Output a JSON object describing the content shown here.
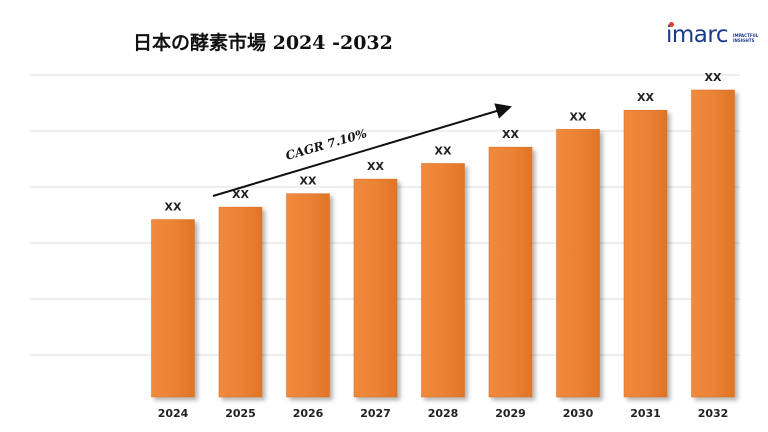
{
  "title": "日本の酵素市場 2024 -2032",
  "logo": {
    "word": "imarc",
    "tagline_1": "IMPACTFUL",
    "tagline_2": "INSIGHTS"
  },
  "colors": {
    "bar": "#ec8234",
    "bar_edge": "#d56a20",
    "grid": "#dcdcdc"
  },
  "chart_data": {
    "type": "bar",
    "categories": [
      "2024",
      "2025",
      "2026",
      "2027",
      "2028",
      "2029",
      "2030",
      "2031",
      "2032"
    ],
    "values": [
      5.0,
      5.35,
      5.73,
      6.14,
      6.58,
      7.04,
      7.54,
      8.08,
      8.65
    ],
    "data_labels": [
      "XX",
      "XX",
      "XX",
      "XX",
      "XX",
      "XX",
      "XX",
      "XX",
      "XX"
    ],
    "annotation": "CAGR 7.10%",
    "grid": true,
    "legend": "none"
  }
}
